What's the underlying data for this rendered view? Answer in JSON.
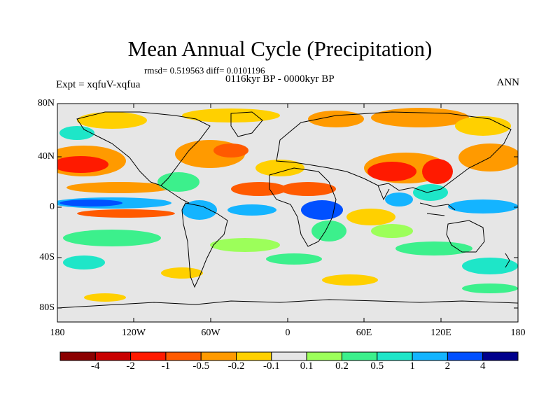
{
  "title": "Mean Annual Cycle (Precipitation)",
  "stats": "rmsd= 0.519563  diff= 0.0101196",
  "period": "0116kyr BP - 0000kyr BP",
  "experiment": "Expt = xqfuV-xqfua",
  "season": "ANN",
  "lat_ticks": [
    "80N",
    "40N",
    "0",
    "40S",
    "80S"
  ],
  "lon_ticks": [
    "180",
    "120W",
    "60W",
    "0",
    "60E",
    "120E",
    "180"
  ],
  "colorbar": {
    "colors": [
      "#8b0000",
      "#c80000",
      "#ff1a00",
      "#ff5a00",
      "#ff9a00",
      "#ffd000",
      "#e6e6e6",
      "#9cff5a",
      "#3cf08c",
      "#1ee6c8",
      "#14b4ff",
      "#0050ff",
      "#00008c"
    ],
    "labels": [
      "-4",
      "-2",
      "-1",
      "-0.5",
      "-0.2",
      "-0.1",
      "0.1",
      "0.2",
      "0.5",
      "1",
      "2",
      "4"
    ]
  },
  "colors": {
    "background": "#e6e6e6",
    "coast": "#000000"
  }
}
